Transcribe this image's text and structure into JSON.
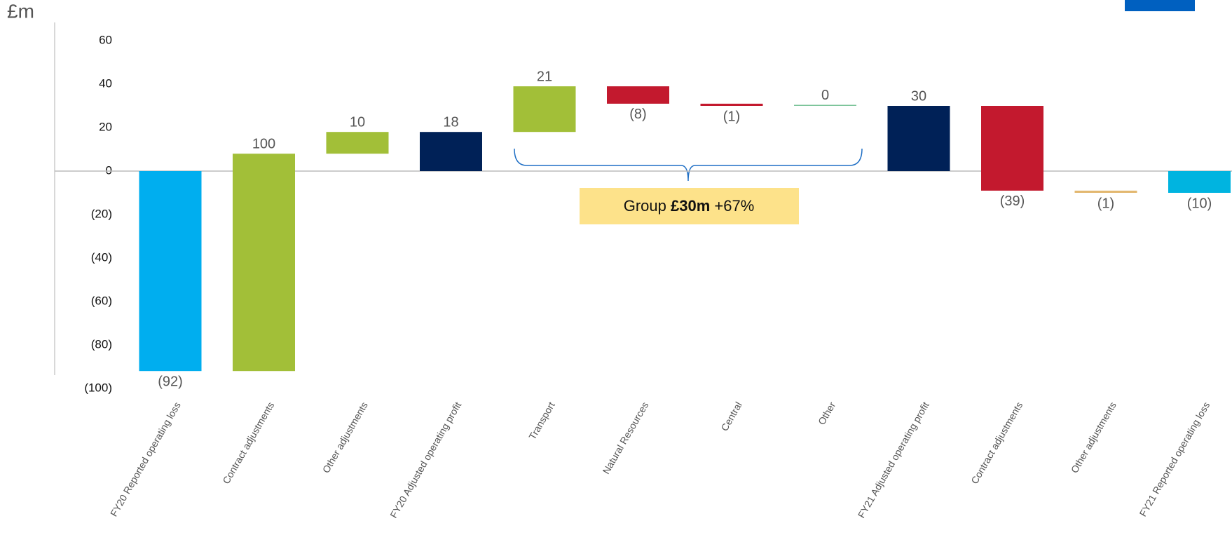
{
  "chart_data": {
    "type": "waterfall",
    "y_unit_label": "£m",
    "categories": [
      "FY20 Reported operating loss",
      "Contract adjustments",
      "Other adjustments",
      "FY20 Adjusted operating profit",
      "Transport",
      "Natural Resources",
      "Central",
      "Other",
      "FY21 Adjusted operating profit",
      "Contract adjustments",
      "Other adjustments",
      "FY21 Reported operating loss"
    ],
    "values": [
      -92,
      100,
      10,
      18,
      21,
      -8,
      -1,
      0,
      30,
      -39,
      -1,
      -10
    ],
    "value_labels": [
      "(92)",
      "100",
      "10",
      "18",
      "21",
      "(8)",
      "(1)",
      "0",
      "30",
      "(39)",
      "(1)",
      "(10)"
    ],
    "measure": [
      "absolute",
      "relative",
      "relative",
      "absolute",
      "relative",
      "relative",
      "relative",
      "relative",
      "absolute",
      "relative",
      "relative",
      "absolute"
    ],
    "colors": [
      "#00aeef",
      "#a2bf38",
      "#a2bf38",
      "#002157",
      "#a2bf38",
      "#c3192e",
      "#c3192e",
      "#7cc49a",
      "#002157",
      "#c3192e",
      "#e3b870",
      "#00b4e0"
    ],
    "ylim": [
      -100,
      60
    ],
    "yticks": [
      {
        "value": -100,
        "label": "(100)"
      },
      {
        "value": -80,
        "label": "(80)"
      },
      {
        "value": -60,
        "label": "(60)"
      },
      {
        "value": -40,
        "label": "(40)"
      },
      {
        "value": -20,
        "label": "(20)"
      },
      0,
      20,
      40,
      60
    ],
    "annotation": {
      "parts": [
        "Group",
        "£30m",
        "+67%"
      ]
    }
  }
}
